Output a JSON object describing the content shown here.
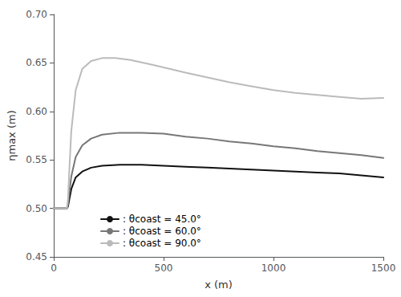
{
  "chart_data": {
    "type": "line",
    "xlabel": "x (m)",
    "ylabel": "ηmax (m)",
    "xlim": [
      0,
      1500
    ],
    "ylim": [
      0.45,
      0.7
    ],
    "xticks": [
      0,
      500,
      1000,
      1500
    ],
    "yticks": [
      0.45,
      {
        "value": 0.5,
        "label": "0.50"
      },
      0.55,
      {
        "value": 0.6,
        "label": "0.60"
      },
      0.65,
      {
        "value": 0.7,
        "label": "0.70"
      }
    ],
    "grid": false,
    "legend": "lower left",
    "series": [
      {
        "name": ": θcoast = 45.0°",
        "color": "#111111",
        "x": [
          0,
          55,
          60,
          65,
          70,
          80,
          100,
          130,
          170,
          220,
          300,
          400,
          500,
          600,
          700,
          800,
          900,
          1000,
          1100,
          1200,
          1300,
          1400,
          1500
        ],
        "values": [
          0.5,
          0.5,
          0.5,
          0.502,
          0.508,
          0.52,
          0.532,
          0.538,
          0.542,
          0.544,
          0.545,
          0.545,
          0.544,
          0.543,
          0.542,
          0.541,
          0.54,
          0.539,
          0.538,
          0.537,
          0.536,
          0.534,
          0.532
        ]
      },
      {
        "name": ": θcoast = 60.0°",
        "color": "#777777",
        "x": [
          0,
          55,
          60,
          65,
          70,
          80,
          100,
          130,
          170,
          220,
          300,
          400,
          500,
          600,
          700,
          800,
          900,
          1000,
          1100,
          1200,
          1300,
          1400,
          1500
        ],
        "values": [
          0.5,
          0.5,
          0.5,
          0.504,
          0.514,
          0.533,
          0.553,
          0.565,
          0.572,
          0.576,
          0.578,
          0.578,
          0.577,
          0.574,
          0.572,
          0.569,
          0.567,
          0.564,
          0.562,
          0.559,
          0.557,
          0.555,
          0.552
        ]
      },
      {
        "name": ": θcoast = 90.0°",
        "color": "#bbbbbb",
        "x": [
          0,
          55,
          60,
          65,
          70,
          80,
          100,
          130,
          170,
          220,
          280,
          350,
          450,
          600,
          700,
          800,
          900,
          1000,
          1100,
          1200,
          1300,
          1400,
          1500
        ],
        "values": [
          0.5,
          0.5,
          0.5,
          0.51,
          0.535,
          0.58,
          0.622,
          0.644,
          0.652,
          0.655,
          0.655,
          0.653,
          0.648,
          0.64,
          0.635,
          0.63,
          0.626,
          0.622,
          0.619,
          0.617,
          0.615,
          0.613,
          0.614
        ]
      }
    ]
  }
}
